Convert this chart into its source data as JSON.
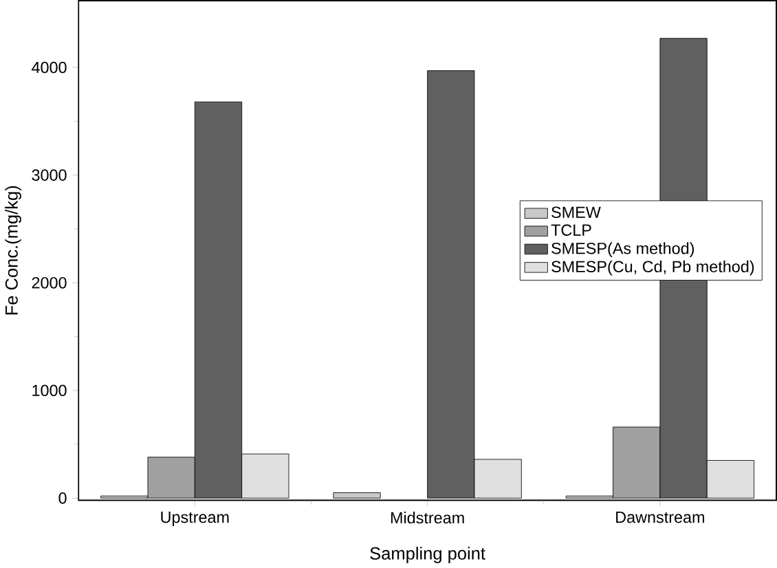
{
  "chart_data": {
    "type": "bar",
    "xlabel": "Sampling point",
    "ylabel": "Fe Conc.(mg/kg)",
    "categories": [
      "Upstream",
      "Midstream",
      "Dawnstream"
    ],
    "series": [
      {
        "name": "SMEW",
        "color": "#c8c8c8",
        "values": [
          20,
          50,
          20
        ]
      },
      {
        "name": "TCLP",
        "color": "#a0a0a0",
        "values": [
          380,
          null,
          660
        ]
      },
      {
        "name": "SMESP(As method)",
        "color": "#606060",
        "values": [
          3680,
          3970,
          4270
        ]
      },
      {
        "name": "SMESP(Cu, Cd, Pb method)",
        "color": "#e0e0e0",
        "values": [
          410,
          360,
          350
        ]
      }
    ],
    "ylim": [
      -20,
      4620
    ],
    "yticks": [
      0,
      1000,
      2000,
      3000,
      4000
    ],
    "grid": false,
    "legend": "right"
  }
}
